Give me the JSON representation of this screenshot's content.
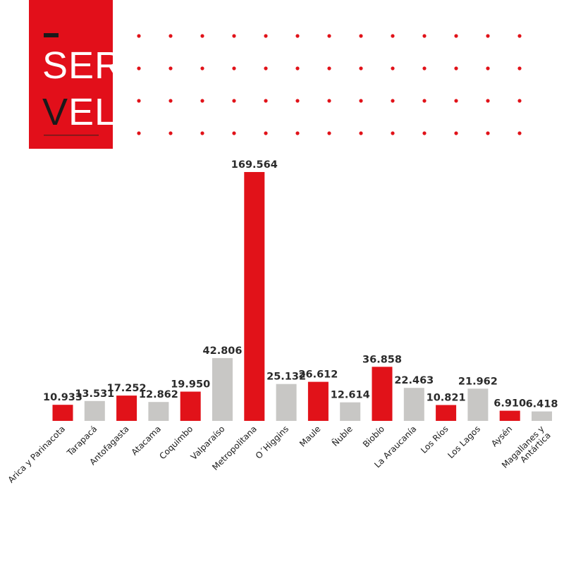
{
  "brand": {
    "line1": "SER",
    "line2_first": "V",
    "line2_rest": "EL",
    "box_color": "#e20f1a",
    "text_color": "#ffffff",
    "accent_color": "#1a1a1a"
  },
  "colors": {
    "red": "#e11219",
    "gray": "#c8c7c5",
    "value_text": "#2b2b2b",
    "dot": "#e11219"
  },
  "chart_data": {
    "type": "bar",
    "title": "",
    "xlabel": "",
    "ylabel": "",
    "ylim": [
      0,
      169564
    ],
    "grid": false,
    "legend": "none",
    "categories": [
      "Arica y Parinacota",
      "Tarapacá",
      "Antofagasta",
      "Atacama",
      "Coquimbo",
      "Valparaíso",
      "Metropolitana",
      "O´Higgins",
      "Maule",
      "Ñuble",
      "Biobío",
      "La Araucanía",
      "Los Ríos",
      "Los Lagos",
      "Aysén",
      "Magallanes y Antártica"
    ],
    "category_lines": [
      [
        "Arica y Parinacota"
      ],
      [
        "Tarapacá"
      ],
      [
        "Antofagasta"
      ],
      [
        "Atacama"
      ],
      [
        "Coquimbo"
      ],
      [
        "Valparaíso"
      ],
      [
        "Metropolitana"
      ],
      [
        "O´Higgins"
      ],
      [
        "Maule"
      ],
      [
        "Ñuble"
      ],
      [
        "Biobío"
      ],
      [
        "La Araucanía"
      ],
      [
        "Los Ríos"
      ],
      [
        "Los Lagos"
      ],
      [
        "Aysén"
      ],
      [
        "Magallanes y",
        "Antártica"
      ]
    ],
    "values": [
      10933,
      13531,
      17252,
      12862,
      19950,
      42806,
      169564,
      25132,
      26612,
      12614,
      36858,
      22463,
      10821,
      21962,
      6910,
      6418
    ],
    "value_labels": [
      "10.933",
      "13.531",
      "17.252",
      "12.862",
      "19.950",
      "42.806",
      "169.564",
      "25.132",
      "26.612",
      "12.614",
      "36.858",
      "22.463",
      "10.821",
      "21.962",
      "6.910",
      "6.418"
    ],
    "bar_colors": [
      "red",
      "gray",
      "red",
      "gray",
      "red",
      "gray",
      "red",
      "gray",
      "red",
      "gray",
      "red",
      "gray",
      "red",
      "gray",
      "red",
      "gray"
    ]
  }
}
